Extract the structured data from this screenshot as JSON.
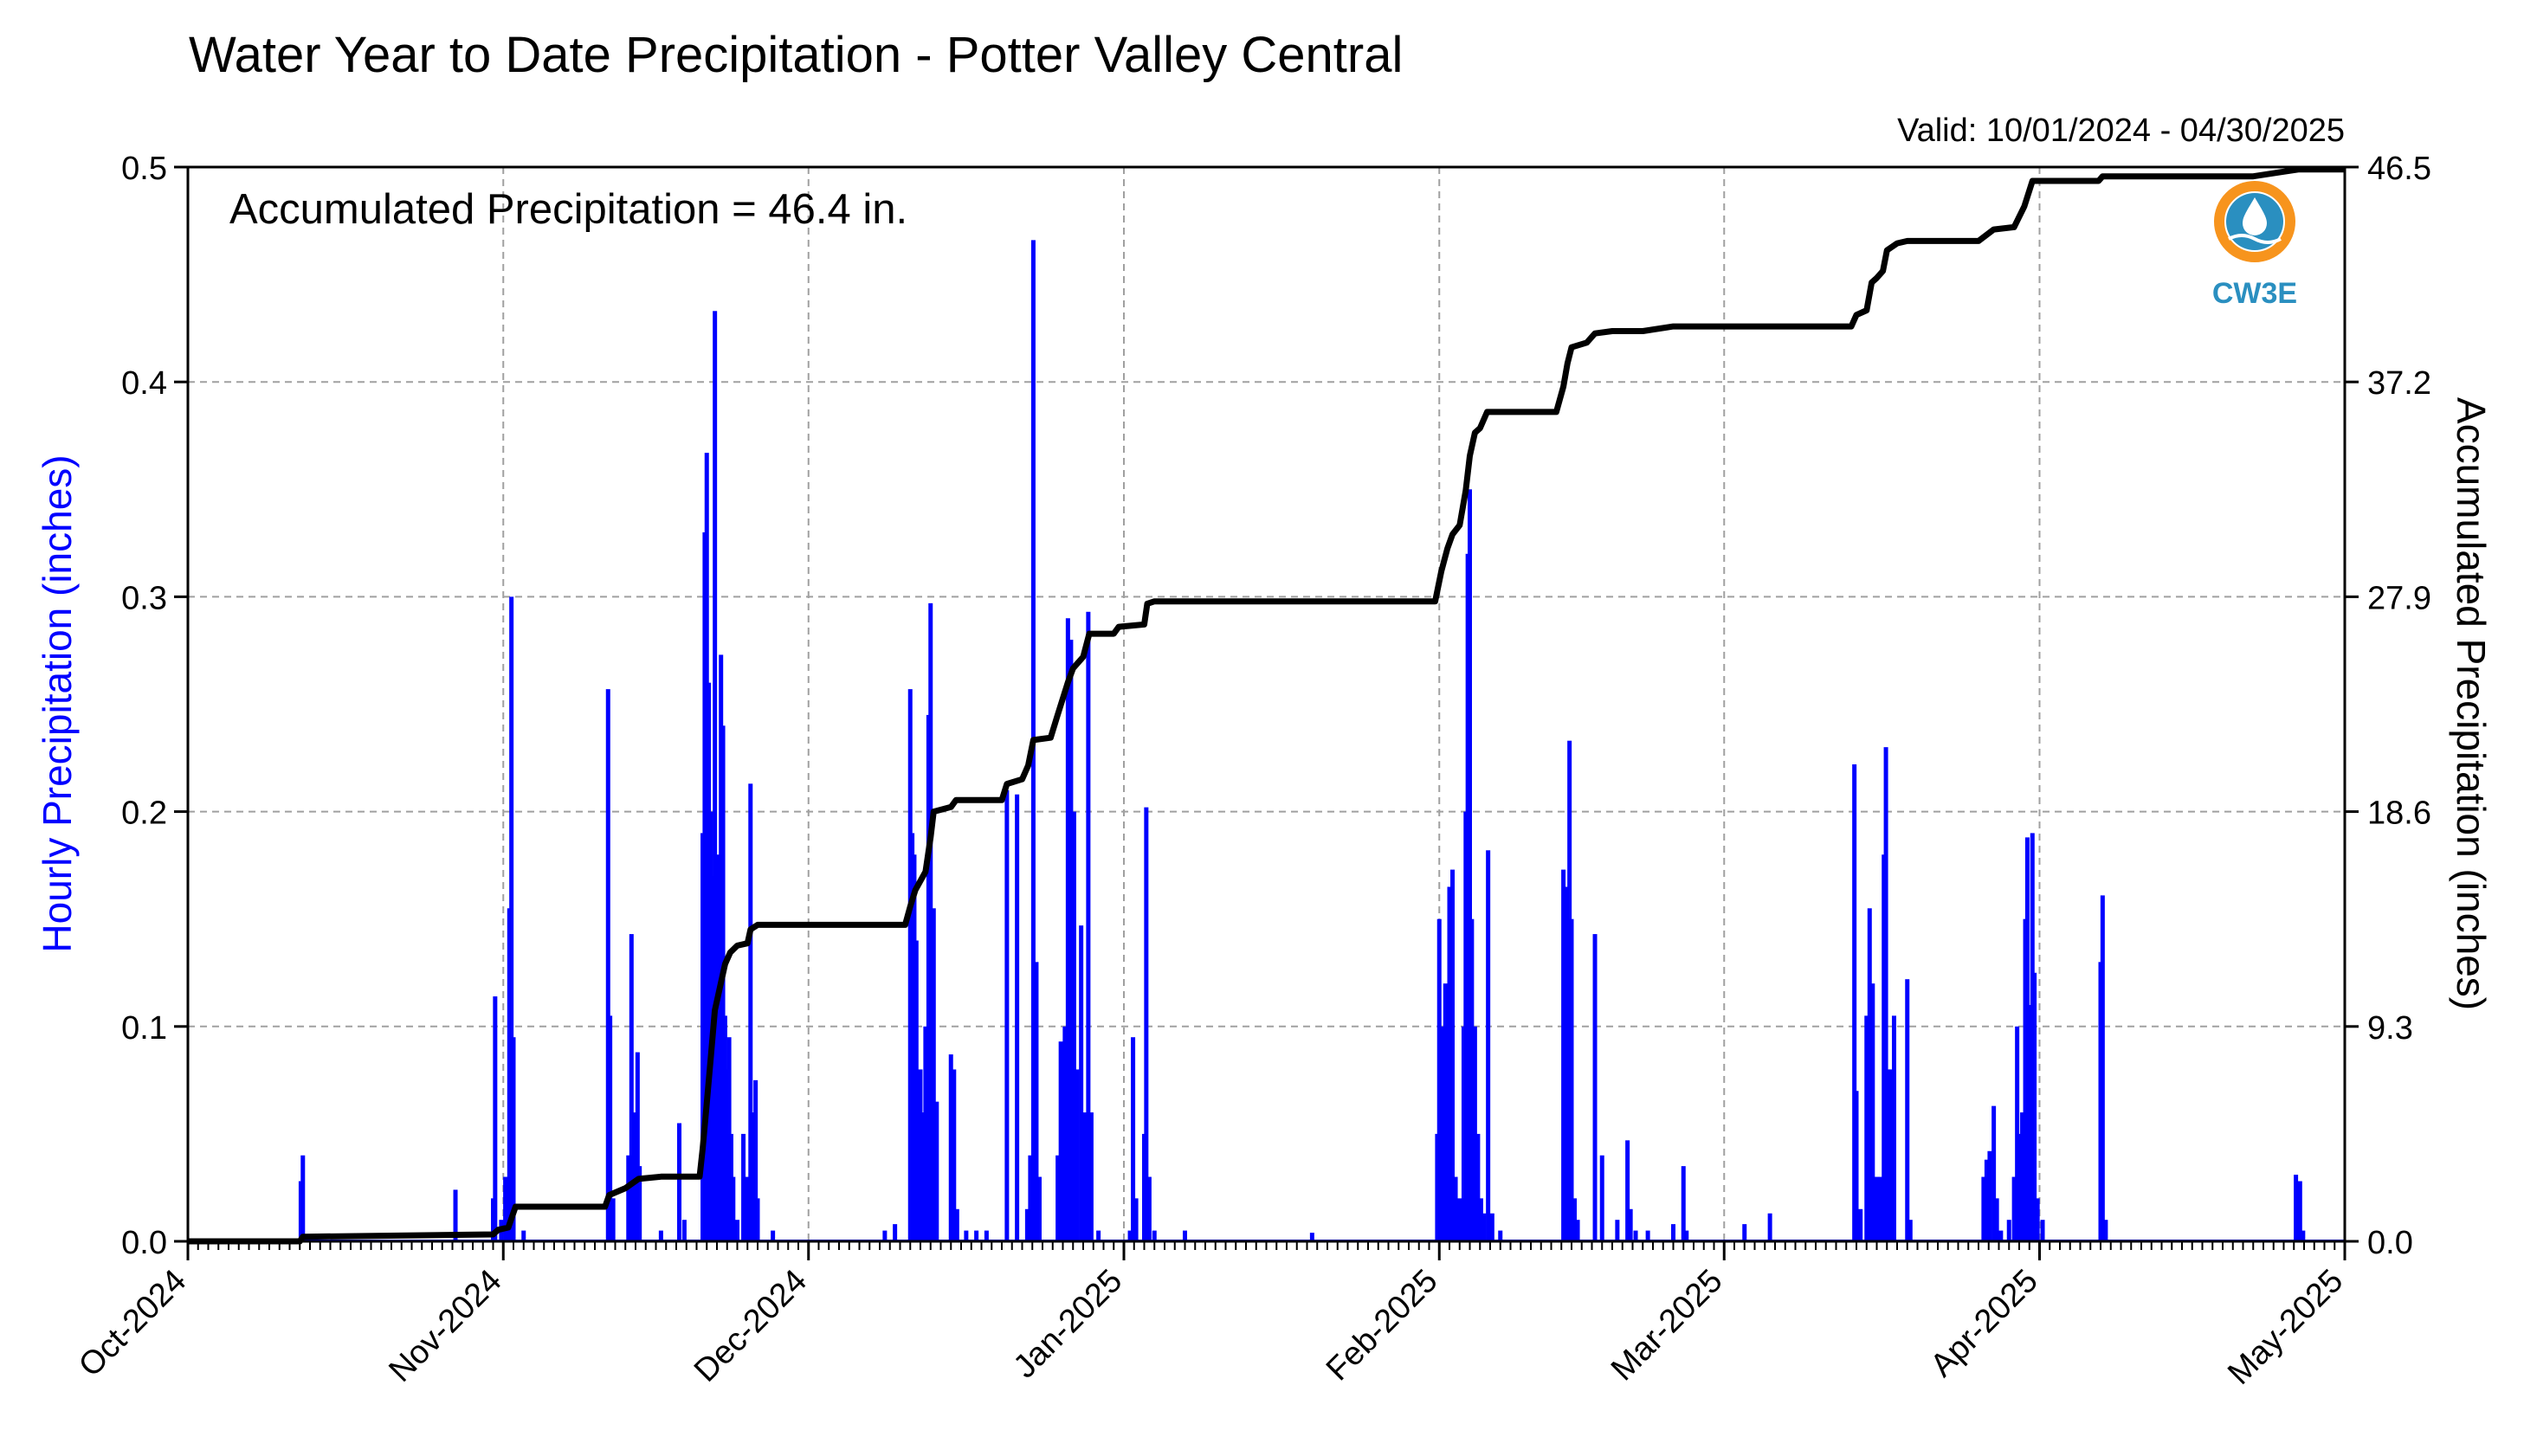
{
  "chart_data": {
    "type": "bar+line",
    "title": "Water Year to Date Precipitation - Potter Valley Central",
    "subtitle": "Valid: 10/01/2024 - 04/30/2025",
    "annotation": "Accumulated Precipitation = 46.4 in.",
    "logo_text": "CW3E",
    "ylabel_left": "Hourly Precipitation (inches)",
    "ylabel_right": "Accumulated Precipitation (inches)",
    "colors": {
      "bars": "#0000ff",
      "line": "#000000",
      "left_label": "#0000ff",
      "logo_ring": "#f7941d",
      "logo_blue": "#2a8fc0"
    },
    "grid": true,
    "xlim": [
      0,
      212
    ],
    "ylim_left": [
      0,
      0.5
    ],
    "ylim_right": [
      0,
      46.5
    ],
    "x_ticks": [
      {
        "day": 0,
        "label": "Oct-2024"
      },
      {
        "day": 31,
        "label": "Nov-2024"
      },
      {
        "day": 61,
        "label": "Dec-2024"
      },
      {
        "day": 92,
        "label": "Jan-2025"
      },
      {
        "day": 123,
        "label": "Feb-2025"
      },
      {
        "day": 151,
        "label": "Mar-2025"
      },
      {
        "day": 182,
        "label": "Apr-2025"
      },
      {
        "day": 212,
        "label": "May-2025"
      }
    ],
    "y_ticks_left": [
      "0.0",
      "0.1",
      "0.2",
      "0.3",
      "0.4",
      "0.5"
    ],
    "y_ticks_right": [
      "0.0",
      "9.3",
      "18.6",
      "27.9",
      "37.2",
      "46.5"
    ],
    "hourly_bars": [
      [
        11.1,
        0.028
      ],
      [
        11.3,
        0.04
      ],
      [
        26.3,
        0.024
      ],
      [
        30.0,
        0.02
      ],
      [
        30.2,
        0.114
      ],
      [
        30.8,
        0.01
      ],
      [
        31.2,
        0.03
      ],
      [
        31.6,
        0.155
      ],
      [
        31.8,
        0.3
      ],
      [
        32.0,
        0.095
      ],
      [
        33.0,
        0.005
      ],
      [
        41.3,
        0.257
      ],
      [
        41.5,
        0.105
      ],
      [
        41.8,
        0.02
      ],
      [
        43.3,
        0.04
      ],
      [
        43.6,
        0.143
      ],
      [
        44.0,
        0.06
      ],
      [
        44.2,
        0.088
      ],
      [
        44.4,
        0.035
      ],
      [
        46.5,
        0.005
      ],
      [
        48.3,
        0.055
      ],
      [
        48.8,
        0.01
      ],
      [
        50.6,
        0.19
      ],
      [
        50.8,
        0.33
      ],
      [
        51.0,
        0.367
      ],
      [
        51.2,
        0.26
      ],
      [
        51.4,
        0.2
      ],
      [
        51.6,
        0.17
      ],
      [
        51.8,
        0.433
      ],
      [
        52.0,
        0.18
      ],
      [
        52.2,
        0.12
      ],
      [
        52.4,
        0.273
      ],
      [
        52.6,
        0.24
      ],
      [
        52.8,
        0.105
      ],
      [
        53.0,
        0.08
      ],
      [
        53.2,
        0.095
      ],
      [
        53.4,
        0.05
      ],
      [
        53.6,
        0.03
      ],
      [
        54.0,
        0.01
      ],
      [
        54.6,
        0.05
      ],
      [
        55.0,
        0.03
      ],
      [
        55.3,
        0.213
      ],
      [
        55.6,
        0.06
      ],
      [
        55.8,
        0.075
      ],
      [
        56.0,
        0.02
      ],
      [
        57.5,
        0.005
      ],
      [
        68.5,
        0.005
      ],
      [
        69.5,
        0.008
      ],
      [
        71.0,
        0.257
      ],
      [
        71.2,
        0.19
      ],
      [
        71.4,
        0.18
      ],
      [
        71.6,
        0.14
      ],
      [
        72.0,
        0.08
      ],
      [
        72.2,
        0.06
      ],
      [
        72.5,
        0.1
      ],
      [
        72.8,
        0.245
      ],
      [
        73.0,
        0.297
      ],
      [
        73.3,
        0.155
      ],
      [
        73.6,
        0.065
      ],
      [
        75.0,
        0.087
      ],
      [
        75.3,
        0.08
      ],
      [
        75.6,
        0.015
      ],
      [
        76.5,
        0.005
      ],
      [
        77.5,
        0.005
      ],
      [
        78.5,
        0.005
      ],
      [
        80.5,
        0.21
      ],
      [
        81.5,
        0.208
      ],
      [
        82.5,
        0.015
      ],
      [
        82.8,
        0.04
      ],
      [
        83.1,
        0.466
      ],
      [
        83.4,
        0.13
      ],
      [
        83.7,
        0.03
      ],
      [
        85.5,
        0.04
      ],
      [
        85.8,
        0.093
      ],
      [
        86.2,
        0.1
      ],
      [
        86.5,
        0.29
      ],
      [
        86.8,
        0.28
      ],
      [
        87.1,
        0.2
      ],
      [
        87.4,
        0.08
      ],
      [
        87.8,
        0.147
      ],
      [
        88.1,
        0.06
      ],
      [
        88.5,
        0.293
      ],
      [
        88.8,
        0.06
      ],
      [
        89.5,
        0.005
      ],
      [
        92.6,
        0.005
      ],
      [
        92.9,
        0.095
      ],
      [
        93.2,
        0.02
      ],
      [
        94.0,
        0.05
      ],
      [
        94.2,
        0.202
      ],
      [
        94.5,
        0.03
      ],
      [
        95.0,
        0.005
      ],
      [
        98.0,
        0.005
      ],
      [
        110.5,
        0.004
      ],
      [
        122.8,
        0.05
      ],
      [
        123.0,
        0.15
      ],
      [
        123.3,
        0.1
      ],
      [
        123.6,
        0.12
      ],
      [
        124.0,
        0.165
      ],
      [
        124.3,
        0.173
      ],
      [
        124.6,
        0.03
      ],
      [
        125.0,
        0.02
      ],
      [
        125.4,
        0.1
      ],
      [
        125.6,
        0.2
      ],
      [
        125.8,
        0.32
      ],
      [
        126.0,
        0.35
      ],
      [
        126.2,
        0.15
      ],
      [
        126.5,
        0.1
      ],
      [
        126.8,
        0.05
      ],
      [
        127.1,
        0.02
      ],
      [
        127.4,
        0.013
      ],
      [
        127.8,
        0.182
      ],
      [
        128.2,
        0.013
      ],
      [
        129.0,
        0.005
      ],
      [
        135.2,
        0.173
      ],
      [
        135.5,
        0.165
      ],
      [
        135.8,
        0.233
      ],
      [
        136.0,
        0.15
      ],
      [
        136.3,
        0.02
      ],
      [
        136.6,
        0.01
      ],
      [
        138.3,
        0.143
      ],
      [
        139.0,
        0.04
      ],
      [
        140.5,
        0.01
      ],
      [
        141.5,
        0.047
      ],
      [
        141.8,
        0.015
      ],
      [
        142.3,
        0.005
      ],
      [
        143.5,
        0.005
      ],
      [
        146.0,
        0.008
      ],
      [
        147.0,
        0.035
      ],
      [
        147.3,
        0.005
      ],
      [
        153.0,
        0.008
      ],
      [
        155.5,
        0.013
      ],
      [
        163.8,
        0.222
      ],
      [
        164.0,
        0.07
      ],
      [
        164.4,
        0.015
      ],
      [
        165.0,
        0.105
      ],
      [
        165.3,
        0.155
      ],
      [
        165.6,
        0.12
      ],
      [
        166.0,
        0.03
      ],
      [
        166.4,
        0.03
      ],
      [
        166.7,
        0.18
      ],
      [
        166.9,
        0.23
      ],
      [
        167.1,
        0.08
      ],
      [
        167.4,
        0.08
      ],
      [
        167.7,
        0.105
      ],
      [
        169.0,
        0.122
      ],
      [
        169.3,
        0.01
      ],
      [
        176.5,
        0.03
      ],
      [
        176.8,
        0.038
      ],
      [
        177.1,
        0.042
      ],
      [
        177.5,
        0.063
      ],
      [
        177.8,
        0.02
      ],
      [
        178.2,
        0.005
      ],
      [
        179.0,
        0.01
      ],
      [
        179.5,
        0.03
      ],
      [
        179.8,
        0.1
      ],
      [
        180.0,
        0.05
      ],
      [
        180.3,
        0.06
      ],
      [
        180.6,
        0.15
      ],
      [
        180.8,
        0.188
      ],
      [
        181.0,
        0.11
      ],
      [
        181.3,
        0.19
      ],
      [
        181.5,
        0.125
      ],
      [
        181.8,
        0.02
      ],
      [
        182.3,
        0.01
      ],
      [
        188.0,
        0.13
      ],
      [
        188.2,
        0.161
      ],
      [
        188.5,
        0.01
      ],
      [
        207.2,
        0.031
      ],
      [
        207.6,
        0.028
      ],
      [
        207.9,
        0.005
      ]
    ],
    "accumulated_line": [
      [
        0,
        0.0
      ],
      [
        11.0,
        0.0
      ],
      [
        11.3,
        0.2
      ],
      [
        30.0,
        0.3
      ],
      [
        30.5,
        0.5
      ],
      [
        31.5,
        0.6
      ],
      [
        32.2,
        1.5
      ],
      [
        41.0,
        1.5
      ],
      [
        41.4,
        2.0
      ],
      [
        43.0,
        2.3
      ],
      [
        44.3,
        2.7
      ],
      [
        46.5,
        2.8
      ],
      [
        50.3,
        2.8
      ],
      [
        50.6,
        4.0
      ],
      [
        51.0,
        6.0
      ],
      [
        51.4,
        8.0
      ],
      [
        51.8,
        10.0
      ],
      [
        52.3,
        11.0
      ],
      [
        52.8,
        12.0
      ],
      [
        53.3,
        12.5
      ],
      [
        54.0,
        12.8
      ],
      [
        55.0,
        12.9
      ],
      [
        55.3,
        13.5
      ],
      [
        56.0,
        13.7
      ],
      [
        70.5,
        13.7
      ],
      [
        71.0,
        14.5
      ],
      [
        71.5,
        15.2
      ],
      [
        72.5,
        16.0
      ],
      [
        73.0,
        17.5
      ],
      [
        73.3,
        18.6
      ],
      [
        75.0,
        18.8
      ],
      [
        75.5,
        19.1
      ],
      [
        80.0,
        19.1
      ],
      [
        80.5,
        19.8
      ],
      [
        82.0,
        20.0
      ],
      [
        82.6,
        20.6
      ],
      [
        83.1,
        21.7
      ],
      [
        84.8,
        21.8
      ],
      [
        85.5,
        22.8
      ],
      [
        86.5,
        24.2
      ],
      [
        87.0,
        24.8
      ],
      [
        88.0,
        25.3
      ],
      [
        88.6,
        26.3
      ],
      [
        91.0,
        26.3
      ],
      [
        91.5,
        26.6
      ],
      [
        94.0,
        26.7
      ],
      [
        94.3,
        27.6
      ],
      [
        95.0,
        27.7
      ],
      [
        122.6,
        27.7
      ],
      [
        123.2,
        29.0
      ],
      [
        123.8,
        30.0
      ],
      [
        124.3,
        30.6
      ],
      [
        125.0,
        31.0
      ],
      [
        125.6,
        32.5
      ],
      [
        126.0,
        34.0
      ],
      [
        126.5,
        35.0
      ],
      [
        127.0,
        35.2
      ],
      [
        127.7,
        35.9
      ],
      [
        128.2,
        35.9
      ],
      [
        134.5,
        35.9
      ],
      [
        135.2,
        37.0
      ],
      [
        135.6,
        38.0
      ],
      [
        136.0,
        38.7
      ],
      [
        137.5,
        38.9
      ],
      [
        138.3,
        39.3
      ],
      [
        140.0,
        39.4
      ],
      [
        143.0,
        39.4
      ],
      [
        146.0,
        39.6
      ],
      [
        148.0,
        39.6
      ],
      [
        163.5,
        39.6
      ],
      [
        164.0,
        40.1
      ],
      [
        165.0,
        40.3
      ],
      [
        165.5,
        41.5
      ],
      [
        166.0,
        41.7
      ],
      [
        166.6,
        42.0
      ],
      [
        167.0,
        42.9
      ],
      [
        168.0,
        43.2
      ],
      [
        169.0,
        43.3
      ],
      [
        176.0,
        43.3
      ],
      [
        177.5,
        43.8
      ],
      [
        179.5,
        43.9
      ],
      [
        180.5,
        44.8
      ],
      [
        181.3,
        45.9
      ],
      [
        182.0,
        45.9
      ],
      [
        187.8,
        45.9
      ],
      [
        188.2,
        46.1
      ],
      [
        203.0,
        46.1
      ],
      [
        206.0,
        46.3
      ],
      [
        207.5,
        46.4
      ],
      [
        212.0,
        46.4
      ]
    ]
  }
}
